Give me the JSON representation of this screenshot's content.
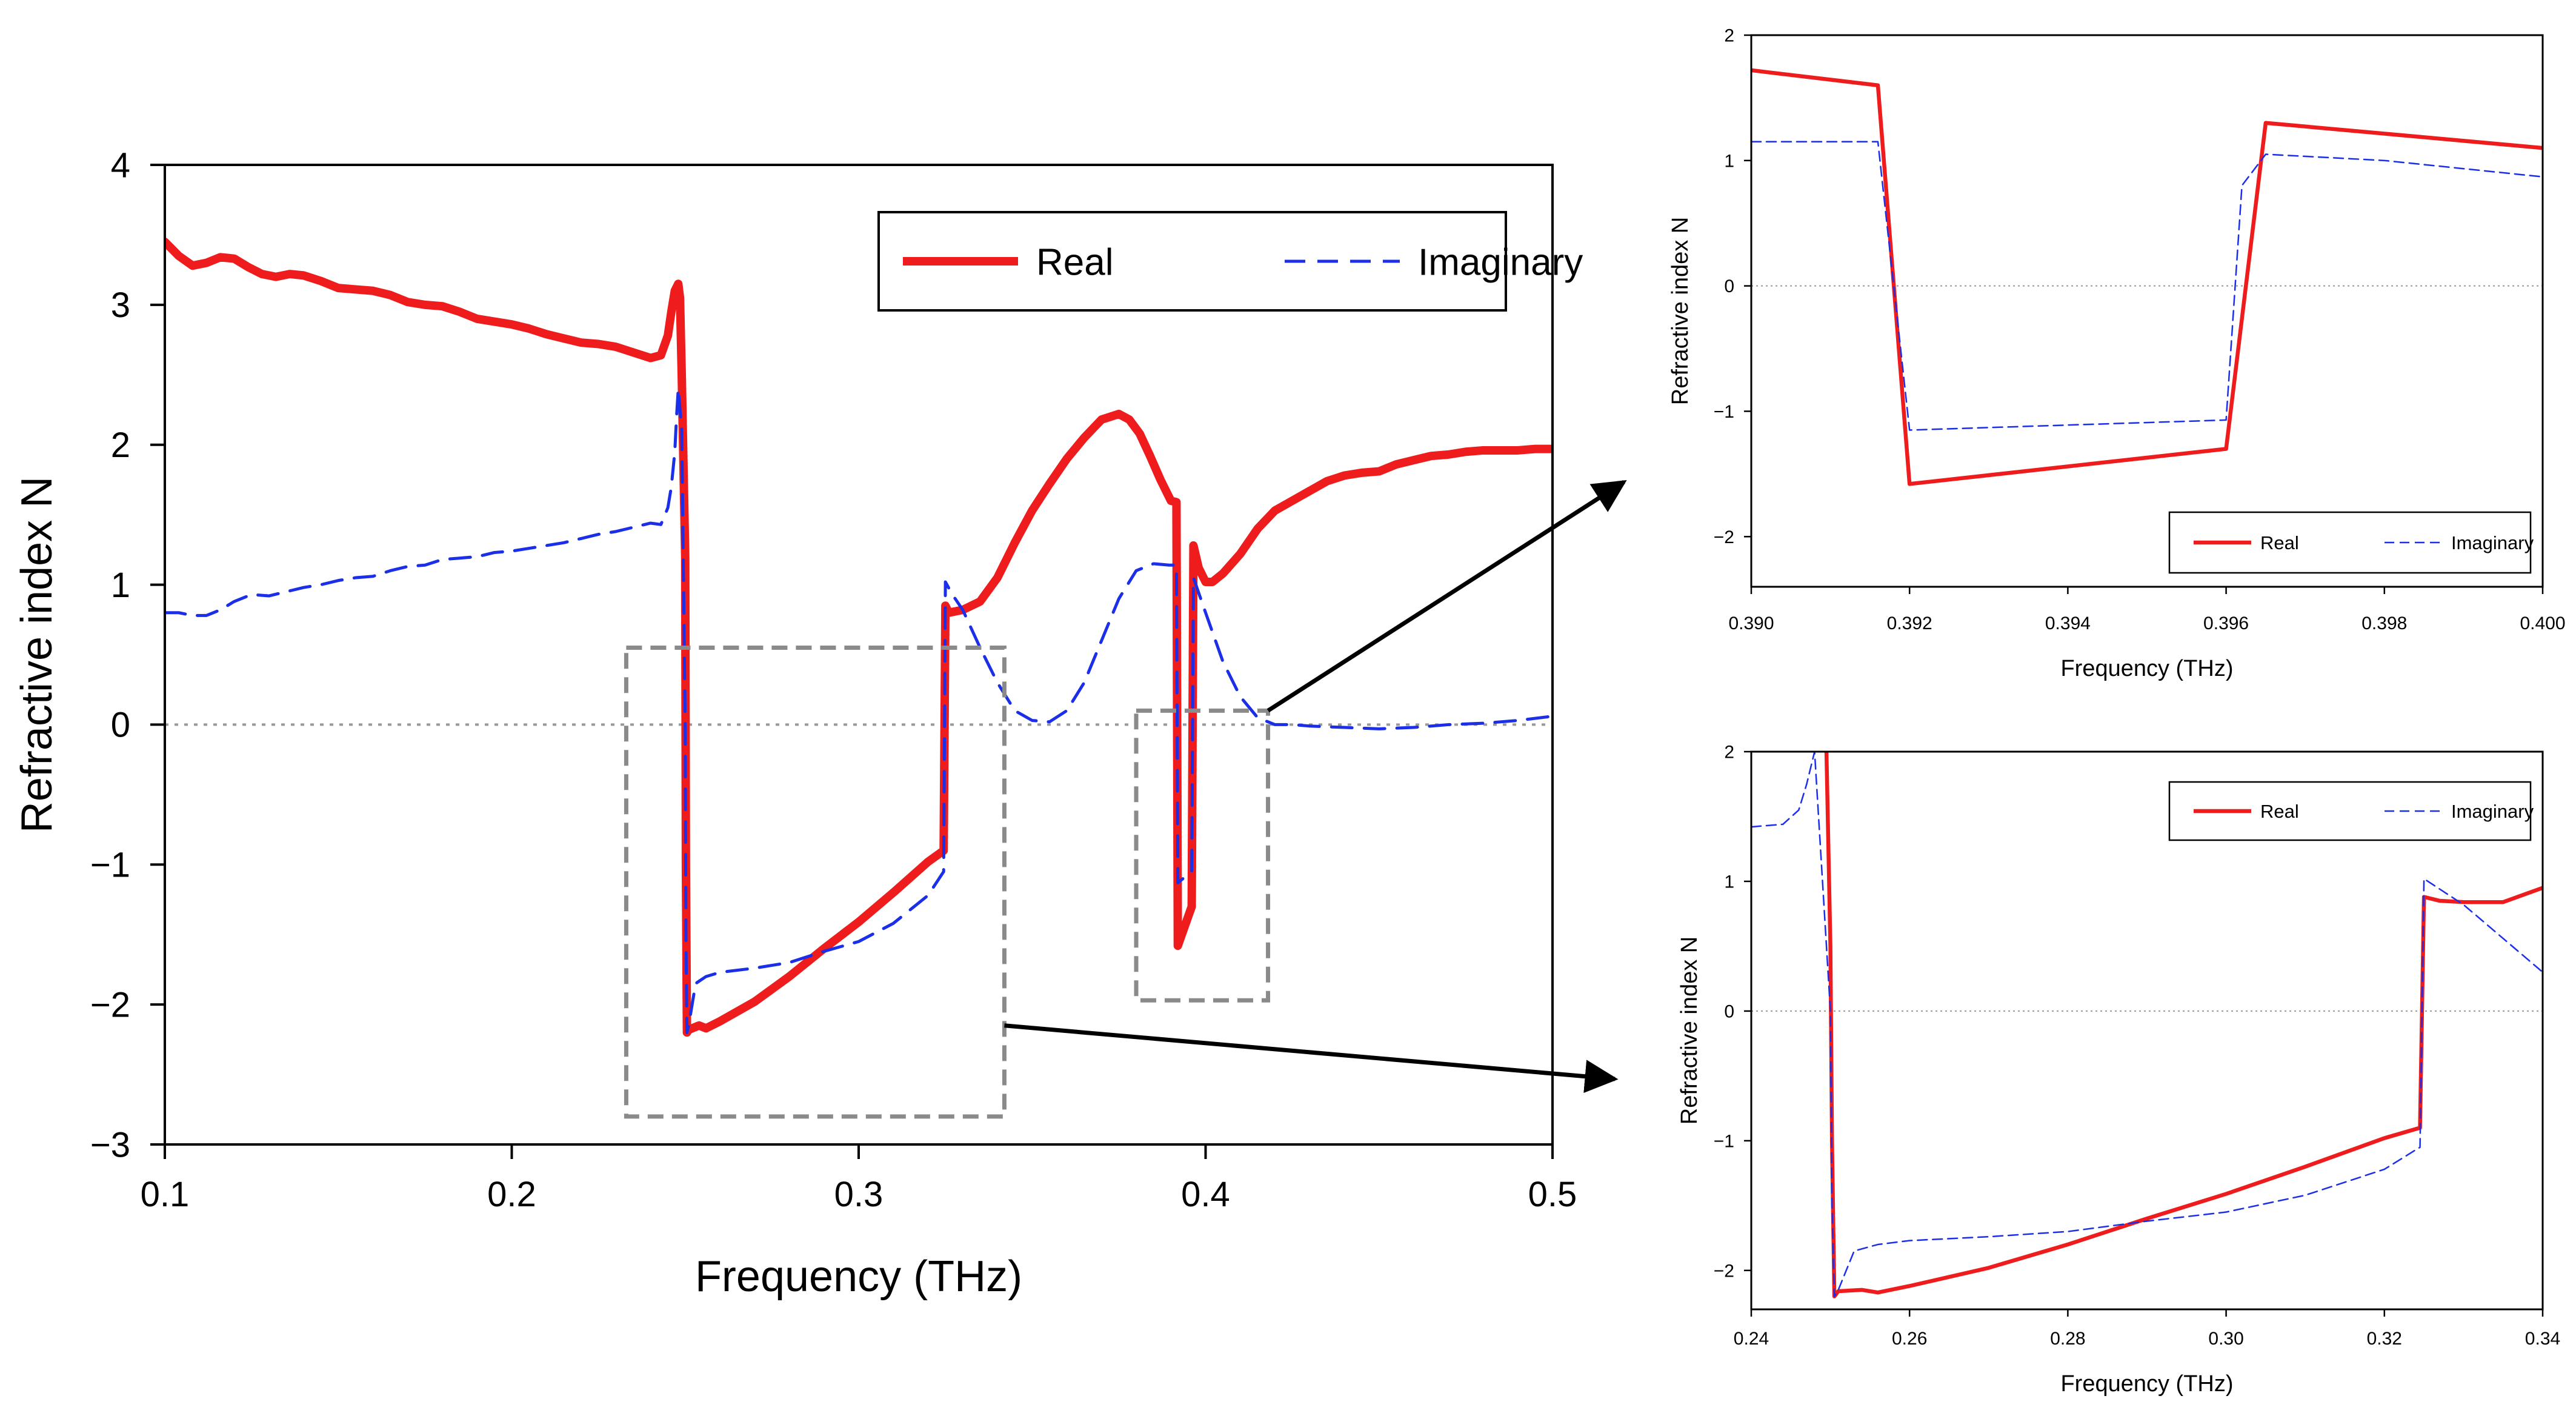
{
  "colors": {
    "real": "#ee1c1c",
    "imaginary": "#1b2ee8",
    "zero_line": "#999999",
    "zoom_box": "#8a8a8a",
    "arrow": "#000000"
  },
  "chart_data": [
    {
      "id": "main",
      "type": "line",
      "xlabel": "Frequency (THz)",
      "ylabel": "Refractive index N",
      "xlim": [
        0.1,
        0.5
      ],
      "ylim": [
        -3,
        4
      ],
      "xticks": [
        0.1,
        0.2,
        0.3,
        0.4,
        0.5
      ],
      "xtick_labels": [
        "0.1",
        "0.2",
        "0.3",
        "0.4",
        "0.5"
      ],
      "yticks": [
        -3,
        -2,
        -1,
        0,
        1,
        2,
        3,
        4
      ],
      "ytick_labels": [
        "−3",
        "−2",
        "−1",
        "0",
        "1",
        "2",
        "3",
        "4"
      ],
      "legend": {
        "position": "top-right",
        "entries": [
          "Real",
          "Imaginary"
        ]
      },
      "zoom_boxes": [
        {
          "name": "zoom-box-lower",
          "xrange": [
            0.233,
            0.342
          ],
          "yrange": [
            -2.8,
            0.55
          ]
        },
        {
          "name": "zoom-box-upper",
          "xrange": [
            0.38,
            0.418
          ],
          "yrange": [
            -1.97,
            0.1
          ]
        }
      ],
      "series": [
        {
          "name": "Real",
          "x": [
            0.1,
            0.104,
            0.108,
            0.112,
            0.116,
            0.12,
            0.124,
            0.128,
            0.132,
            0.136,
            0.14,
            0.145,
            0.15,
            0.155,
            0.16,
            0.165,
            0.17,
            0.175,
            0.18,
            0.185,
            0.19,
            0.195,
            0.2,
            0.205,
            0.21,
            0.215,
            0.22,
            0.225,
            0.23,
            0.235,
            0.24,
            0.243,
            0.245,
            0.246,
            0.247,
            0.248,
            0.2485,
            0.249,
            0.25,
            0.2502,
            0.2505,
            0.251,
            0.254,
            0.256,
            0.26,
            0.27,
            0.28,
            0.29,
            0.3,
            0.31,
            0.32,
            0.3245,
            0.325,
            0.326,
            0.33,
            0.335,
            0.34,
            0.345,
            0.35,
            0.355,
            0.36,
            0.365,
            0.37,
            0.375,
            0.378,
            0.381,
            0.384,
            0.387,
            0.39,
            0.3916,
            0.392,
            0.396,
            0.3965,
            0.398,
            0.4,
            0.402,
            0.405,
            0.41,
            0.415,
            0.42,
            0.425,
            0.43,
            0.435,
            0.44,
            0.445,
            0.45,
            0.455,
            0.46,
            0.465,
            0.47,
            0.475,
            0.48,
            0.485,
            0.49,
            0.495,
            0.5
          ],
          "y": [
            3.45,
            3.35,
            3.28,
            3.3,
            3.34,
            3.33,
            3.27,
            3.22,
            3.2,
            3.22,
            3.21,
            3.17,
            3.12,
            3.11,
            3.1,
            3.07,
            3.02,
            3.0,
            2.99,
            2.95,
            2.9,
            2.88,
            2.86,
            2.83,
            2.79,
            2.76,
            2.73,
            2.72,
            2.7,
            2.66,
            2.62,
            2.64,
            2.78,
            2.95,
            3.1,
            3.15,
            3.05,
            2.5,
            1.2,
            -1.0,
            -2.2,
            -2.18,
            -2.15,
            -2.17,
            -2.12,
            -1.98,
            -1.8,
            -1.6,
            -1.41,
            -1.2,
            -0.98,
            -0.9,
            0.85,
            0.8,
            0.82,
            0.88,
            1.05,
            1.3,
            1.53,
            1.72,
            1.9,
            2.05,
            2.18,
            2.22,
            2.18,
            2.08,
            1.92,
            1.75,
            1.6,
            1.59,
            -1.58,
            -1.3,
            1.28,
            1.12,
            1.02,
            1.02,
            1.08,
            1.22,
            1.4,
            1.53,
            1.6,
            1.67,
            1.74,
            1.78,
            1.8,
            1.81,
            1.86,
            1.89,
            1.92,
            1.93,
            1.95,
            1.96,
            1.96,
            1.96,
            1.97,
            1.97
          ]
        },
        {
          "name": "Imaginary",
          "x": [
            0.1,
            0.104,
            0.108,
            0.112,
            0.116,
            0.12,
            0.125,
            0.13,
            0.135,
            0.14,
            0.145,
            0.15,
            0.155,
            0.16,
            0.165,
            0.17,
            0.175,
            0.18,
            0.185,
            0.19,
            0.195,
            0.2,
            0.205,
            0.21,
            0.215,
            0.22,
            0.225,
            0.23,
            0.235,
            0.24,
            0.243,
            0.245,
            0.246,
            0.247,
            0.2475,
            0.248,
            0.249,
            0.25,
            0.2502,
            0.2505,
            0.251,
            0.253,
            0.256,
            0.26,
            0.27,
            0.28,
            0.29,
            0.3,
            0.31,
            0.32,
            0.3245,
            0.325,
            0.327,
            0.33,
            0.335,
            0.34,
            0.345,
            0.35,
            0.355,
            0.36,
            0.365,
            0.37,
            0.375,
            0.38,
            0.385,
            0.3895,
            0.3916,
            0.392,
            0.396,
            0.3965,
            0.4,
            0.405,
            0.41,
            0.415,
            0.42,
            0.425,
            0.43,
            0.44,
            0.45,
            0.46,
            0.47,
            0.48,
            0.49,
            0.5
          ],
          "y": [
            0.8,
            0.8,
            0.78,
            0.78,
            0.82,
            0.88,
            0.93,
            0.92,
            0.95,
            0.98,
            1.0,
            1.03,
            1.05,
            1.06,
            1.1,
            1.13,
            1.14,
            1.18,
            1.19,
            1.2,
            1.23,
            1.24,
            1.26,
            1.28,
            1.3,
            1.33,
            1.36,
            1.38,
            1.41,
            1.44,
            1.43,
            1.55,
            1.7,
            1.95,
            2.2,
            2.4,
            2.1,
            0.0,
            -1.5,
            -2.2,
            -2.15,
            -1.85,
            -1.8,
            -1.77,
            -1.74,
            -1.7,
            -1.62,
            -1.55,
            -1.42,
            -1.22,
            -1.05,
            1.02,
            0.93,
            0.82,
            0.55,
            0.3,
            0.1,
            0.03,
            0.02,
            0.1,
            0.3,
            0.6,
            0.9,
            1.1,
            1.15,
            1.14,
            1.14,
            -1.13,
            -1.05,
            1.05,
            0.8,
            0.45,
            0.2,
            0.05,
            0.0,
            0.0,
            -0.01,
            -0.02,
            -0.03,
            -0.02,
            0.0,
            0.01,
            0.03,
            0.06
          ]
        }
      ]
    },
    {
      "id": "inset-top",
      "type": "line",
      "xlabel": "Frequency (THz)",
      "ylabel": "Refractive index N",
      "xlim": [
        0.39,
        0.4
      ],
      "ylim": [
        -2.4,
        2
      ],
      "xticks": [
        0.39,
        0.392,
        0.394,
        0.396,
        0.398,
        0.4
      ],
      "xtick_labels": [
        "0.390",
        "0.392",
        "0.394",
        "0.396",
        "0.398",
        "0.400"
      ],
      "yticks": [
        -2,
        -1,
        0,
        1,
        2
      ],
      "ytick_labels": [
        "−2",
        "−1",
        "0",
        "1",
        "2"
      ],
      "legend": {
        "position": "bottom-right",
        "entries": [
          "Real",
          "Imaginary"
        ]
      },
      "series": [
        {
          "name": "Real",
          "x": [
            0.39,
            0.3916,
            0.392,
            0.396,
            0.3965,
            0.4
          ],
          "y": [
            1.72,
            1.6,
            -1.58,
            -1.3,
            1.3,
            1.1
          ]
        },
        {
          "name": "Imaginary",
          "x": [
            0.39,
            0.3916,
            0.392,
            0.396,
            0.3962,
            0.3965,
            0.398,
            0.4
          ],
          "y": [
            1.15,
            1.15,
            -1.15,
            -1.07,
            0.8,
            1.05,
            1.0,
            0.87
          ]
        }
      ]
    },
    {
      "id": "inset-bottom",
      "type": "line",
      "xlabel": "Frequency (THz)",
      "ylabel": "Refractive index N",
      "xlim": [
        0.24,
        0.34
      ],
      "ylim": [
        -2.3,
        2
      ],
      "xticks": [
        0.24,
        0.26,
        0.28,
        0.3,
        0.32,
        0.34
      ],
      "xtick_labels": [
        "0.24",
        "0.26",
        "0.28",
        "0.30",
        "0.32",
        "0.34"
      ],
      "yticks": [
        -2,
        -1,
        0,
        1,
        2
      ],
      "ytick_labels": [
        "−2",
        "−1",
        "0",
        "1",
        "2"
      ],
      "legend": {
        "position": "top-right",
        "entries": [
          "Real",
          "Imaginary"
        ]
      },
      "series": [
        {
          "name": "Real",
          "x": [
            0.2495,
            0.25,
            0.2502,
            0.2505,
            0.251,
            0.254,
            0.256,
            0.26,
            0.27,
            0.28,
            0.29,
            0.3,
            0.31,
            0.32,
            0.3245,
            0.325,
            0.327,
            0.33,
            0.335,
            0.34
          ],
          "y": [
            2.0,
            0.5,
            -1.0,
            -2.2,
            -2.16,
            -2.15,
            -2.17,
            -2.12,
            -1.98,
            -1.8,
            -1.6,
            -1.41,
            -1.2,
            -0.98,
            -0.9,
            0.88,
            0.85,
            0.84,
            0.84,
            0.95
          ]
        },
        {
          "name": "Imaginary",
          "x": [
            0.24,
            0.244,
            0.246,
            0.247,
            0.248,
            0.25,
            0.2502,
            0.2505,
            0.251,
            0.253,
            0.256,
            0.26,
            0.27,
            0.28,
            0.29,
            0.3,
            0.31,
            0.32,
            0.3245,
            0.325,
            0.33,
            0.34
          ],
          "y": [
            1.42,
            1.44,
            1.55,
            1.75,
            2.0,
            0.0,
            -1.5,
            -2.2,
            -2.15,
            -1.85,
            -1.8,
            -1.77,
            -1.74,
            -1.7,
            -1.62,
            -1.55,
            -1.42,
            -1.22,
            -1.05,
            1.02,
            0.82,
            0.3
          ]
        }
      ]
    }
  ]
}
